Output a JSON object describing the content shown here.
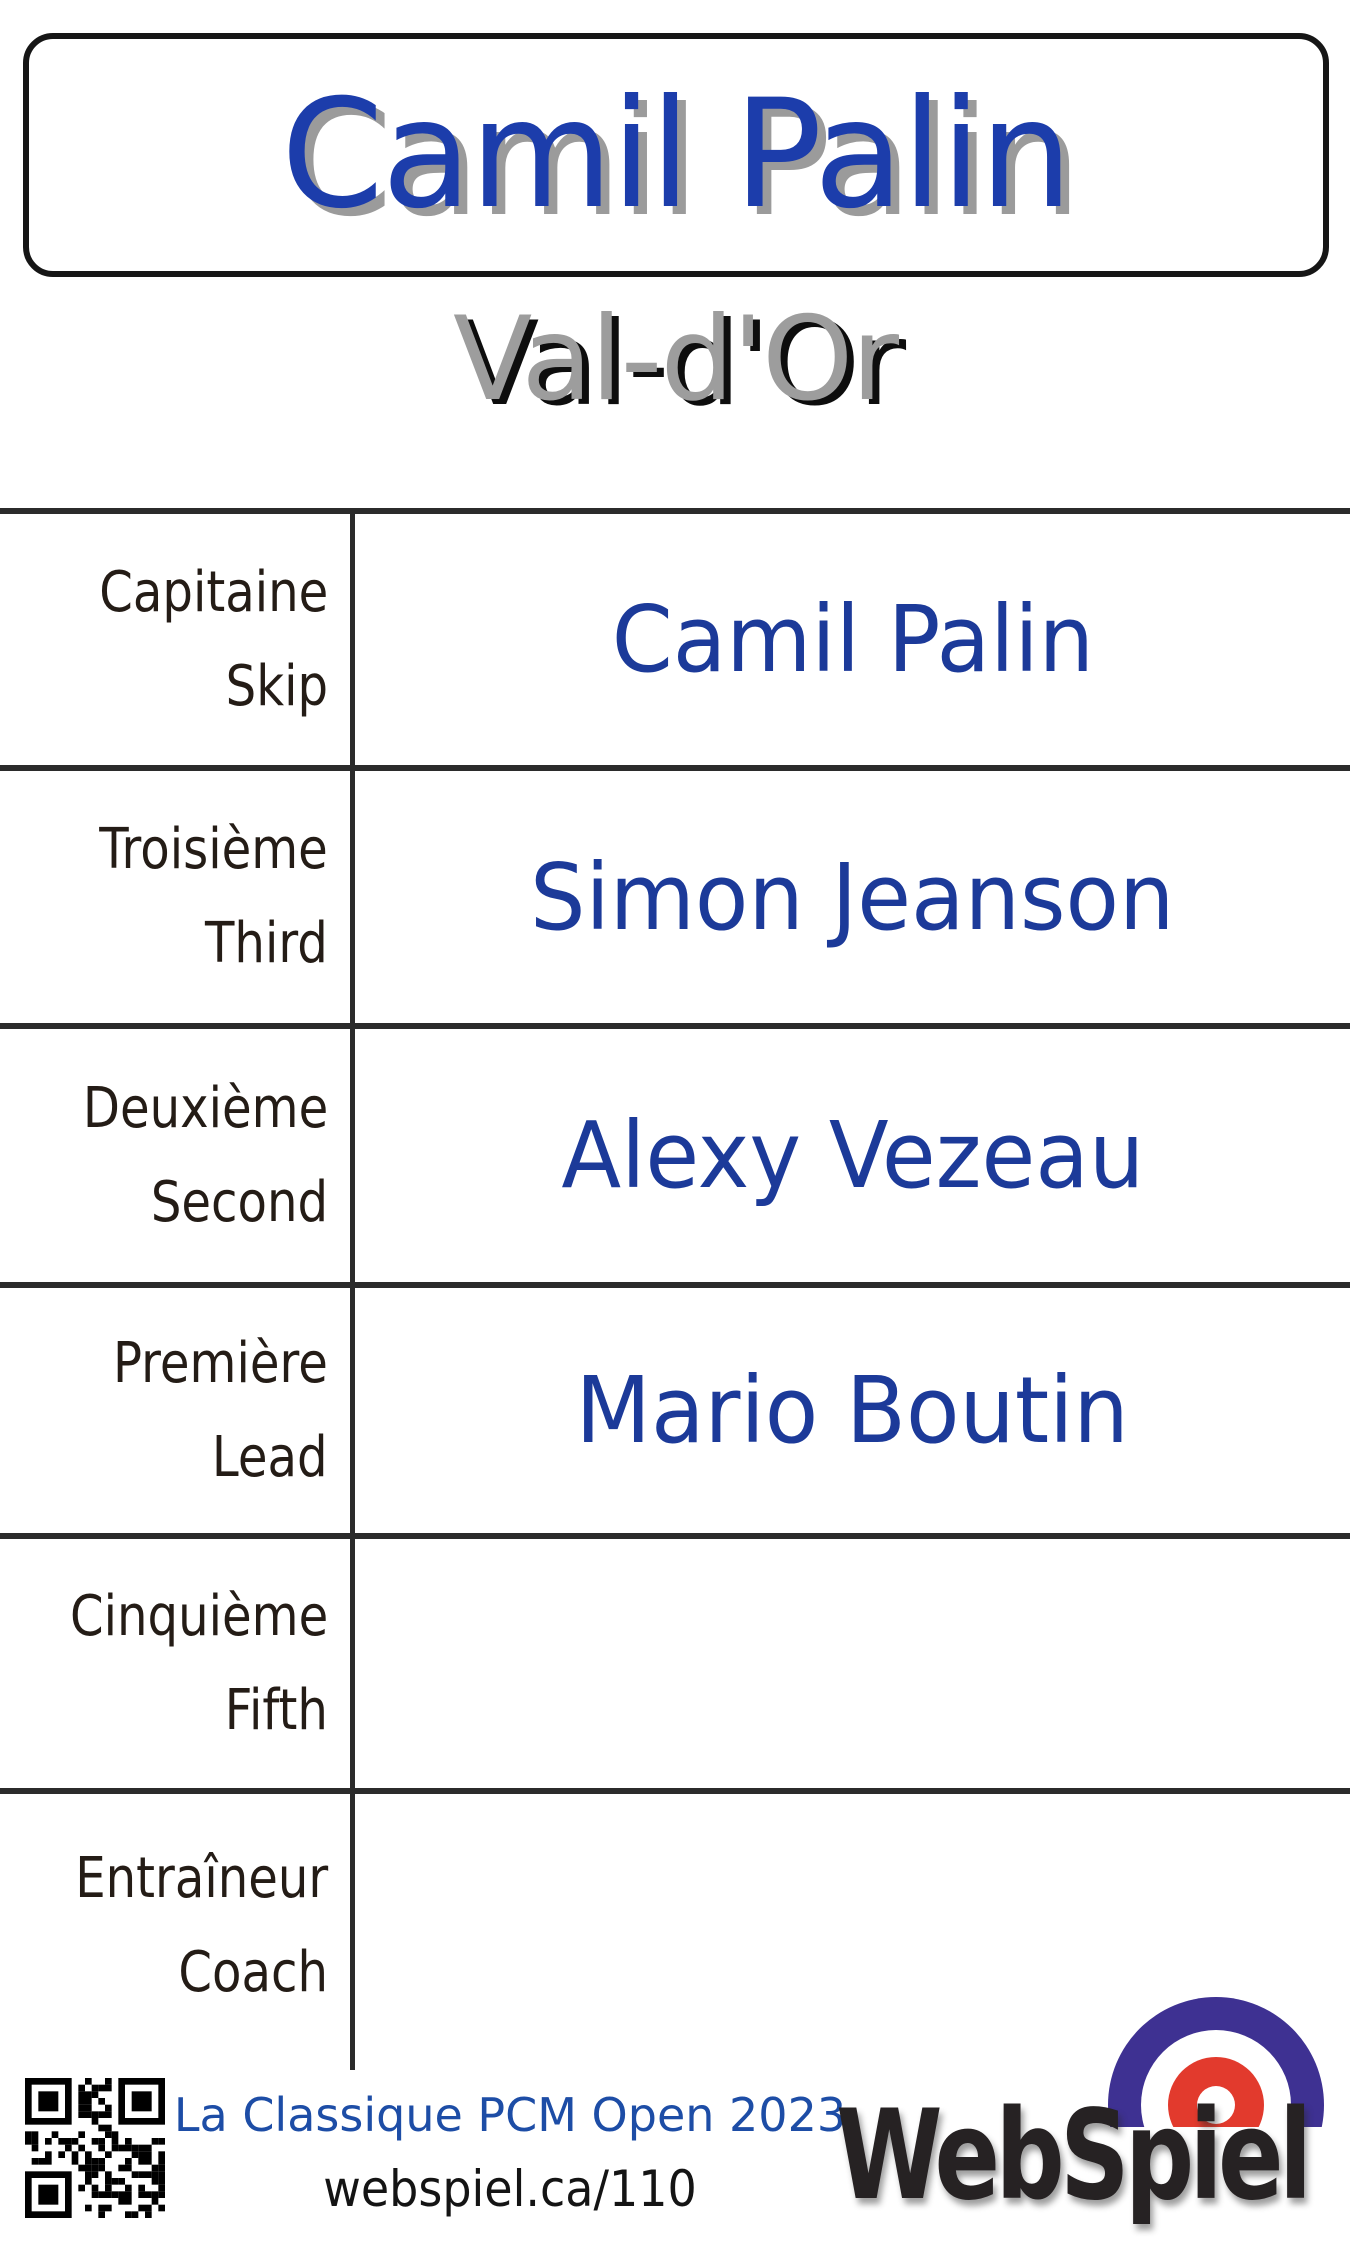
{
  "header": {
    "team_name": "Camil Palin",
    "city": "Val-d'Or"
  },
  "roster": {
    "rows": [
      {
        "label_fr": "Capitaine",
        "label_en": "Skip",
        "name": "Camil Palin"
      },
      {
        "label_fr": "Troisième",
        "label_en": "Third",
        "name": "Simon Jeanson"
      },
      {
        "label_fr": "Deuxième",
        "label_en": "Second",
        "name": "Alexy Vezeau"
      },
      {
        "label_fr": "Première",
        "label_en": "Lead",
        "name": "Mario Boutin"
      },
      {
        "label_fr": "Cinquième",
        "label_en": "Fifth",
        "name": ""
      },
      {
        "label_fr": "Entraîneur",
        "label_en": "Coach",
        "name": ""
      }
    ]
  },
  "footer": {
    "event": "La Classique PCM Open 2023",
    "url": "webspiel.ca/110",
    "brand": "WebSpiel"
  },
  "colors": {
    "title_blue": "#1c3dab",
    "name_blue": "#1c3a99",
    "subtitle_gray": "#9d9d9d",
    "shadow_gray": "#9b9b9b",
    "line_dark": "#2b2b2b",
    "footer_blue": "#1d4da6",
    "logo_purple": "#3e3192",
    "logo_red": "#e23a2d",
    "logo_black": "#262223"
  }
}
